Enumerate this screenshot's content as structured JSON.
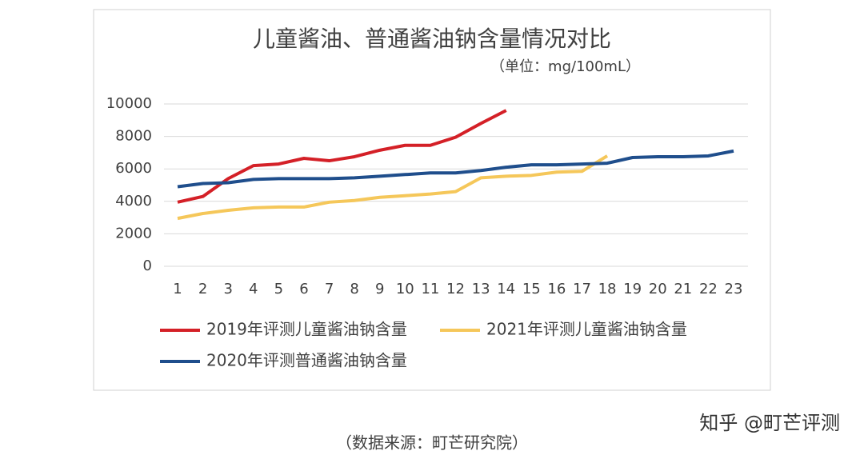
{
  "chart_data": {
    "type": "line",
    "title": "儿童酱油、普通酱油钠含量情况对比",
    "subtitle": "（单位：mg/100mL）",
    "x": [
      1,
      2,
      3,
      4,
      5,
      6,
      7,
      8,
      9,
      10,
      11,
      12,
      13,
      14,
      15,
      16,
      17,
      18,
      19,
      20,
      21,
      22,
      23
    ],
    "xlim": [
      1,
      23
    ],
    "xticks": [
      1,
      2,
      3,
      4,
      5,
      6,
      7,
      8,
      9,
      10,
      11,
      12,
      13,
      14,
      15,
      16,
      17,
      18,
      19,
      20,
      21,
      22,
      23
    ],
    "ylim": [
      0,
      10000
    ],
    "yticks": [
      0,
      2000,
      4000,
      6000,
      8000,
      10000
    ],
    "grid": true,
    "legend": "bottom",
    "series": [
      {
        "name": "2019年评测儿童酱油钠含量",
        "color": "#d42027",
        "values": [
          3950,
          4300,
          5400,
          6200,
          6300,
          6650,
          6500,
          6750,
          7150,
          7450,
          7450,
          7950,
          8800,
          9600,
          null,
          null,
          null,
          null,
          null,
          null,
          null,
          null,
          null
        ]
      },
      {
        "name": "2021年评测儿童酱油钠含量",
        "color": "#f5c75a",
        "values": [
          2950,
          3250,
          3450,
          3600,
          3650,
          3650,
          3950,
          4050,
          4250,
          4350,
          4450,
          4600,
          5450,
          5550,
          5600,
          5800,
          5850,
          6800,
          null,
          null,
          null,
          null,
          null
        ]
      },
      {
        "name": "2020年评测普通酱油钠含量",
        "color": "#1f4e8c",
        "values": [
          4900,
          5100,
          5150,
          5350,
          5400,
          5400,
          5400,
          5450,
          5550,
          5650,
          5750,
          5750,
          5900,
          6100,
          6250,
          6250,
          6300,
          6350,
          6700,
          6750,
          6750,
          6800,
          7100
        ]
      }
    ],
    "source": "（数据来源：町芒研究院）",
    "watermark": "知乎 @町芒评测"
  }
}
